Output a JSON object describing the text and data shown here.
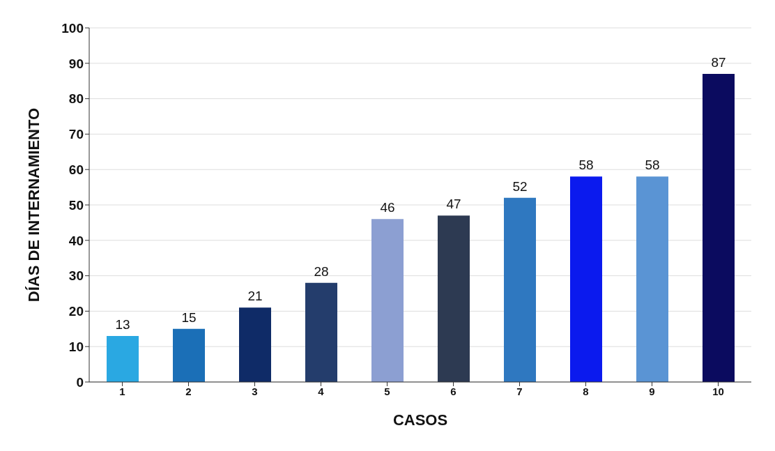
{
  "chart_data": {
    "type": "bar",
    "xlabel": "CASOS",
    "ylabel": "DÍAS DE INTERNAMIENTO",
    "categories": [
      "1",
      "2",
      "3",
      "4",
      "5",
      "6",
      "7",
      "8",
      "9",
      "10"
    ],
    "values": [
      13,
      15,
      21,
      28,
      46,
      47,
      52,
      58,
      58,
      87
    ],
    "colors": [
      "#2aa8e2",
      "#1b6fb7",
      "#0f2b67",
      "#243d6c",
      "#8c9fd2",
      "#2d3a52",
      "#2f78c0",
      "#0b1aee",
      "#5a94d4",
      "#0b0b5f"
    ],
    "ylim": [
      0,
      100
    ],
    "yticks": [
      0,
      10,
      20,
      30,
      40,
      50,
      60,
      70,
      80,
      90,
      100
    ],
    "grid": "y",
    "data_labels": true
  }
}
